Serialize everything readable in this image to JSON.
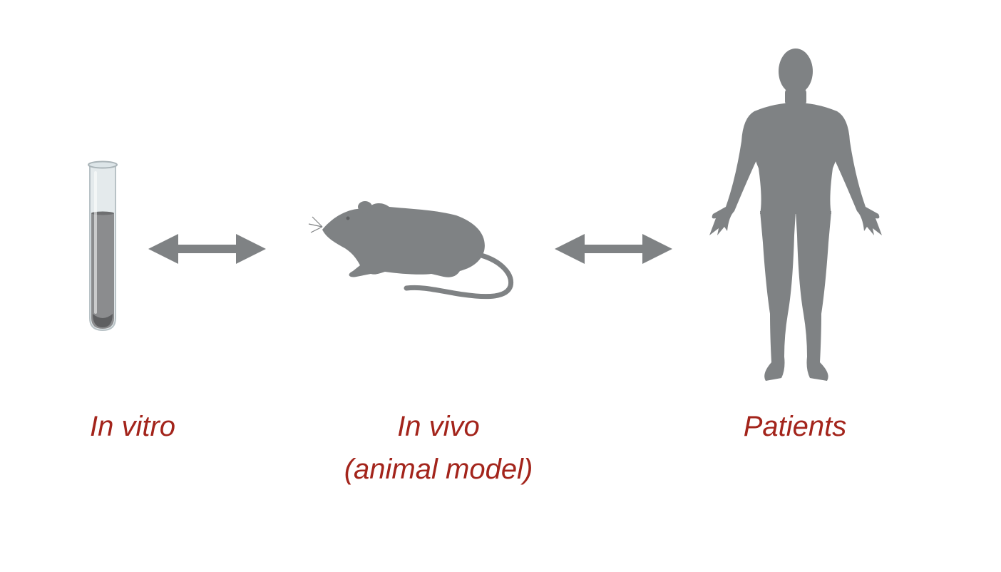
{
  "diagram": {
    "stages": [
      {
        "id": "in-vitro",
        "label_lines": [
          "In vitro"
        ],
        "icon": "test-tube-icon"
      },
      {
        "id": "in-vivo",
        "label_lines": [
          "In vivo",
          "(animal model)"
        ],
        "icon": "mouse-icon"
      },
      {
        "id": "patients",
        "label_lines": [
          "Patients"
        ],
        "icon": "human-figure-icon"
      }
    ],
    "connectors": [
      {
        "from": "in-vitro",
        "to": "in-vivo",
        "type": "double-headed-arrow"
      },
      {
        "from": "in-vivo",
        "to": "patients",
        "type": "double-headed-arrow"
      }
    ],
    "colors": {
      "label": "#a3241b",
      "icon_fill": "#7f8284",
      "arrow": "#7f8284",
      "tube_liquid": "#8b8c8e",
      "tube_glass": "#d9e1e4",
      "background": "#ffffff"
    }
  }
}
